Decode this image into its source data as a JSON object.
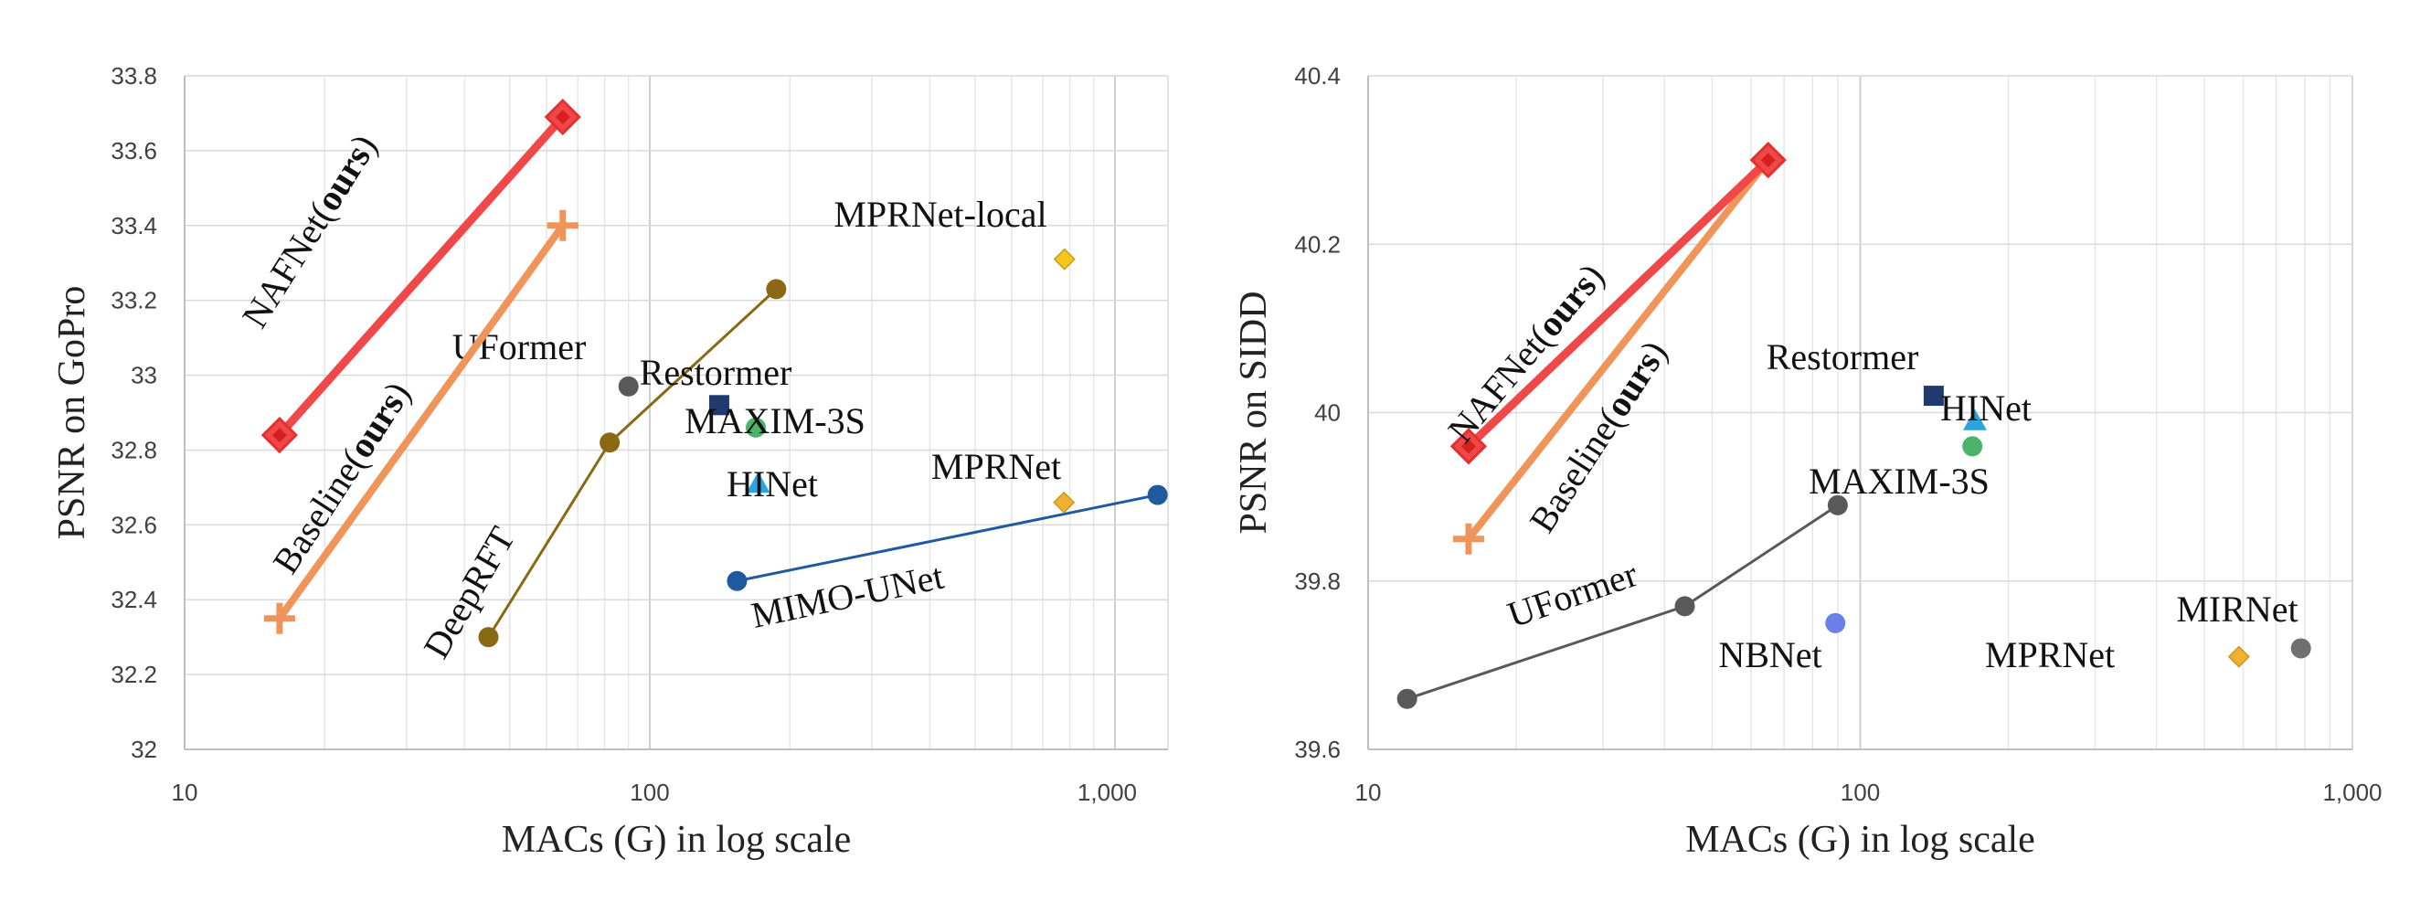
{
  "chart_data": [
    {
      "type": "scatter",
      "xscale": "log",
      "xlabel": "MACs (G) in log scale",
      "ylabel": "PSNR on GoPro",
      "xlim": [
        10,
        1300
      ],
      "ylim": [
        32,
        33.8
      ],
      "xticks": [
        {
          "value": 10,
          "label": "10"
        },
        {
          "value": 100,
          "label": "100"
        },
        {
          "value": 1000,
          "label": "1,000"
        }
      ],
      "yticks": [
        {
          "value": 32,
          "label": "32"
        },
        {
          "value": 32.2,
          "label": "32.2"
        },
        {
          "value": 32.4,
          "label": "32.4"
        },
        {
          "value": 32.6,
          "label": "32.6"
        },
        {
          "value": 32.8,
          "label": "32.8"
        },
        {
          "value": 33,
          "label": "33"
        },
        {
          "value": 33.2,
          "label": "33.2"
        },
        {
          "value": 33.4,
          "label": "33.4"
        },
        {
          "value": 33.6,
          "label": "33.6"
        },
        {
          "value": 33.8,
          "label": "33.8"
        }
      ],
      "series": [
        {
          "name": "NAFNet",
          "label": "NAFNet(",
          "label_bold": "ours",
          "label_end": ")",
          "marker": "diamond",
          "color": "#f04848",
          "line_width": 9,
          "points": [
            {
              "x": 16,
              "y": 32.84
            },
            {
              "x": 65,
              "y": 33.69
            }
          ]
        },
        {
          "name": "Baseline",
          "label": "Baseline(",
          "label_bold": "ours",
          "label_end": ")",
          "marker": "plus",
          "color": "#f0955a",
          "line_width": 8,
          "points": [
            {
              "x": 16,
              "y": 32.35
            },
            {
              "x": 65,
              "y": 33.4
            }
          ]
        },
        {
          "name": "DeepRFT",
          "label": "DeepRFT",
          "marker": "circle",
          "color": "#8b6914",
          "line_width": 3,
          "points": [
            {
              "x": 45,
              "y": 32.3
            },
            {
              "x": 82,
              "y": 32.82
            },
            {
              "x": 187,
              "y": 33.23
            }
          ]
        },
        {
          "name": "MIMO-UNet",
          "label": "MIMO-UNet",
          "marker": "circle",
          "color": "#1f5a9e",
          "line_width": 3,
          "points": [
            {
              "x": 154,
              "y": 32.45
            },
            {
              "x": 1235,
              "y": 32.68
            }
          ]
        },
        {
          "name": "UFormer",
          "label": "UFormer",
          "marker": "circle",
          "color": "#595959",
          "points": [
            {
              "x": 90,
              "y": 32.97
            }
          ]
        },
        {
          "name": "Restormer",
          "label": "Restormer",
          "marker": "square",
          "color": "#1f3b6e",
          "points": [
            {
              "x": 141,
              "y": 32.92
            }
          ]
        },
        {
          "name": "MAXIM-3S",
          "label": "MAXIM-3S",
          "marker": "circle",
          "color": "#4cb36b",
          "points": [
            {
              "x": 169,
              "y": 32.86
            }
          ]
        },
        {
          "name": "HINet",
          "label": "HINet",
          "marker": "triangle",
          "color": "#2aa5e0",
          "points": [
            {
              "x": 171,
              "y": 32.71
            }
          ]
        },
        {
          "name": "MPRNet",
          "label": "MPRNet",
          "marker": "small-diamond",
          "color": "#f0b030",
          "points": [
            {
              "x": 777,
              "y": 32.66
            }
          ]
        },
        {
          "name": "MPRNet-local",
          "label": "MPRNet-local",
          "marker": "small-diamond",
          "color": "#f5c518",
          "points": [
            {
              "x": 779,
              "y": 33.31
            }
          ]
        }
      ]
    },
    {
      "type": "scatter",
      "xscale": "log",
      "xlabel": "MACs (G) in log scale",
      "ylabel": "PSNR on SIDD",
      "xlim": [
        10,
        1000
      ],
      "ylim": [
        39.6,
        40.4
      ],
      "xticks": [
        {
          "value": 10,
          "label": "10"
        },
        {
          "value": 100,
          "label": "100"
        },
        {
          "value": 1000,
          "label": "1,000"
        }
      ],
      "yticks": [
        {
          "value": 39.6,
          "label": "39.6"
        },
        {
          "value": 39.8,
          "label": "39.8"
        },
        {
          "value": 40,
          "label": "40"
        },
        {
          "value": 40.2,
          "label": "40.2"
        },
        {
          "value": 40.4,
          "label": "40.4"
        }
      ],
      "series": [
        {
          "name": "NAFNet",
          "label": "NAFNet(",
          "label_bold": "ours",
          "label_end": ")",
          "marker": "diamond",
          "color": "#f04848",
          "line_width": 9,
          "points": [
            {
              "x": 16,
              "y": 39.96
            },
            {
              "x": 65,
              "y": 40.3
            }
          ]
        },
        {
          "name": "Baseline",
          "label": "Baseline(",
          "label_bold": "ours",
          "label_end": ")",
          "marker": "plus",
          "color": "#f0955a",
          "line_width": 8,
          "points": [
            {
              "x": 16,
              "y": 39.85
            },
            {
              "x": 65,
              "y": 40.3
            }
          ]
        },
        {
          "name": "UFormer",
          "label": "UFormer",
          "marker": "circle",
          "color": "#595959",
          "line_width": 3,
          "points": [
            {
              "x": 12,
              "y": 39.66
            },
            {
              "x": 44,
              "y": 39.77
            },
            {
              "x": 90,
              "y": 39.89
            }
          ]
        },
        {
          "name": "Restormer",
          "label": "Restormer",
          "marker": "square",
          "color": "#1f3b6e",
          "points": [
            {
              "x": 141,
              "y": 40.02
            }
          ]
        },
        {
          "name": "HINet",
          "label": "HINet",
          "marker": "triangle",
          "color": "#2aa5e0",
          "points": [
            {
              "x": 171,
              "y": 39.99
            }
          ]
        },
        {
          "name": "MAXIM-3S",
          "label": "MAXIM-3S",
          "marker": "circle",
          "color": "#4cb36b",
          "points": [
            {
              "x": 169,
              "y": 39.96
            }
          ]
        },
        {
          "name": "NBNet",
          "label": "NBNet",
          "marker": "circle",
          "color": "#6b7fe8",
          "points": [
            {
              "x": 89,
              "y": 39.75
            }
          ]
        },
        {
          "name": "MPRNet",
          "label": "MPRNet",
          "marker": "small-diamond",
          "color": "#f0b030",
          "points": [
            {
              "x": 588,
              "y": 39.71
            }
          ]
        },
        {
          "name": "MIRNet",
          "label": "MIRNet",
          "marker": "circle",
          "color": "#707070",
          "points": [
            {
              "x": 786,
              "y": 39.72
            }
          ]
        }
      ]
    }
  ]
}
